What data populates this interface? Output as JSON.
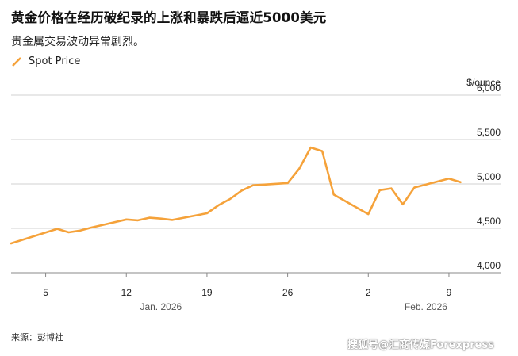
{
  "header": {
    "title": "黄金价格在经历破纪录的上涨和暴跌后逼近5000美元",
    "subtitle": "贵金属交易波动异常剧烈。"
  },
  "footer": {
    "source": "来源：彭博社",
    "watermark": "搜狐号@汇商传媒Forexpress"
  },
  "colors": {
    "line": "#f5a23a",
    "grid": "#d0d0d0",
    "axis": "#888888"
  },
  "chart_data": {
    "type": "line",
    "title": "黄金价格在经历破纪录的上涨和暴跌后逼近5000美元",
    "subtitle": "贵金属交易波动异常剧烈。",
    "ylabel": "$/ounce",
    "ylim": [
      4000,
      6000
    ],
    "yticks": [
      4000,
      4500,
      5000,
      5500,
      6000
    ],
    "ytick_labels": [
      "4,000",
      "4,500",
      "5,000",
      "5,500",
      "6,000"
    ],
    "xticks": [
      "2026-01-05",
      "2026-01-12",
      "2026-01-19",
      "2026-01-26",
      "2026-02-02",
      "2026-02-09"
    ],
    "xtick_labels": [
      "5",
      "12",
      "19",
      "26",
      "2",
      "9"
    ],
    "months": [
      {
        "label": "Jan. 2026",
        "date": "2026-01-15"
      },
      {
        "label": "Feb. 2026",
        "date": "2026-02-07"
      }
    ],
    "xlim": [
      "2026-01-02",
      "2026-02-11"
    ],
    "grid": true,
    "legend": "top-left",
    "series": [
      {
        "name": "Spot Price",
        "x": [
          "2026-01-02",
          "2026-01-06",
          "2026-01-07",
          "2026-01-08",
          "2026-01-09",
          "2026-01-12",
          "2026-01-13",
          "2026-01-14",
          "2026-01-15",
          "2026-01-16",
          "2026-01-19",
          "2026-01-20",
          "2026-01-21",
          "2026-01-22",
          "2026-01-23",
          "2026-01-26",
          "2026-01-27",
          "2026-01-28",
          "2026-01-29",
          "2026-01-30",
          "2026-02-02",
          "2026-02-03",
          "2026-02-04",
          "2026-02-05",
          "2026-02-06",
          "2026-02-09",
          "2026-02-10"
        ],
        "values": [
          4330,
          4495,
          4455,
          4475,
          4510,
          4600,
          4590,
          4620,
          4610,
          4595,
          4670,
          4760,
          4830,
          4925,
          4985,
          5010,
          5170,
          5410,
          5370,
          4880,
          4660,
          4930,
          4950,
          4770,
          4960,
          5060,
          5020
        ]
      }
    ]
  }
}
